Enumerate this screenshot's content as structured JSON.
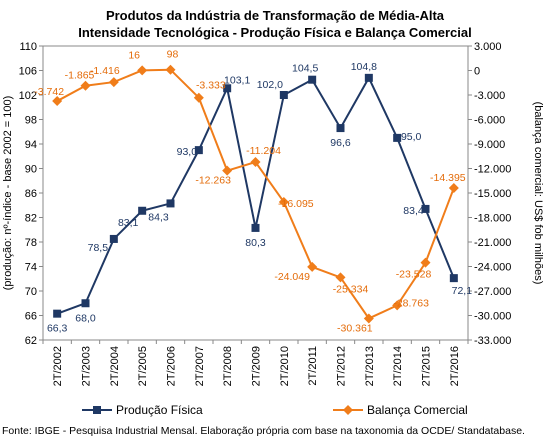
{
  "chart_data": {
    "type": "line",
    "title_line1": "Produtos da Indústria de Transformação de Média-Alta",
    "title_line2": "Intensidade Tecnológica - Produção Física e Balança Comercial",
    "categories": [
      "2T/2002",
      "2T/2003",
      "2T/2004",
      "2T/2005",
      "2T/2006",
      "2T/2007",
      "2T/2008",
      "2T/2009",
      "2T/2010",
      "2T/2011",
      "2T/2012",
      "2T/2013",
      "2T/2014",
      "2T/2015",
      "2T/2016"
    ],
    "ylabel_left": "(produção: nº-índice - base 2002 = 100)",
    "ylabel_right": "(balança comercial: US$ fob milhões)",
    "y_left": {
      "min": 62,
      "max": 110,
      "step": 4,
      "tick_labels": [
        "62",
        "66",
        "70",
        "74",
        "78",
        "82",
        "86",
        "90",
        "94",
        "98",
        "102",
        "106",
        "110"
      ]
    },
    "y_right": {
      "min": -33000,
      "max": 3000,
      "step": 3000,
      "tick_labels": [
        "-33.000",
        "-30.000",
        "-27.000",
        "-24.000",
        "-21.000",
        "-18.000",
        "-15.000",
        "-12.000",
        "-9.000",
        "-6.000",
        "-3.000",
        "0",
        "3.000"
      ]
    },
    "series": [
      {
        "name": "Produção Física",
        "axis": "left",
        "color": "#1F3864",
        "marker": "square",
        "values": [
          66.3,
          68.0,
          78.5,
          83.1,
          84.3,
          93.0,
          103.1,
          80.3,
          102.0,
          104.5,
          96.6,
          104.8,
          95.0,
          83.4,
          72.1
        ],
        "labels": [
          "66,3",
          "68,0",
          "78,5",
          "83,1",
          "84,3",
          "93,0",
          "103,1",
          "80,3",
          "102,0",
          "104,5",
          "96,6",
          "104,8",
          "95,0",
          "83,4",
          "72,1"
        ]
      },
      {
        "name": "Balança Comercial",
        "axis": "right",
        "color": "#F07D1A",
        "marker": "diamond",
        "values": [
          -3742,
          -1865,
          -1416,
          16,
          98,
          -3333,
          -12263,
          -11204,
          -16095,
          -24049,
          -25334,
          -30361,
          -28763,
          -23528,
          -14395
        ],
        "labels": [
          "-3.742",
          "-1.865",
          "-1.416",
          "16",
          "98",
          "-3.333",
          "-12.263",
          "-11.204",
          "-16.095",
          "-24.049",
          "-25.334",
          "-30.361",
          "-28.763",
          "-23.528",
          "-14.395"
        ]
      }
    ],
    "grid": false,
    "legend_position": "bottom"
  },
  "source": "Fonte: IBGE - Pesquisa Industrial Mensal. Elaboração própria com base na taxonomia da OCDE/ Standatabase."
}
